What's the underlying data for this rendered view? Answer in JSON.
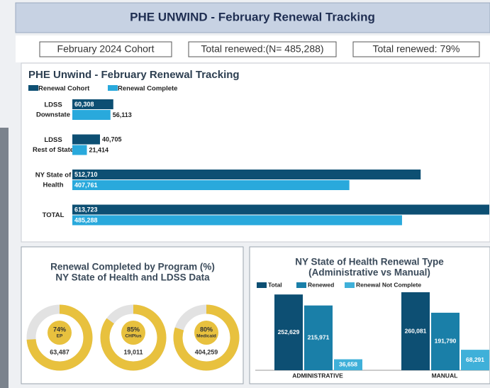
{
  "header": {
    "title": "PHE UNWIND - February Renewal Tracking"
  },
  "stats": [
    "February 2024 Cohort",
    "Total renewed:(N= 485,288)",
    "Total renewed: 79%"
  ],
  "chart_data": [
    {
      "type": "hbar",
      "title": "PHE Unwind - February Renewal Tracking",
      "categories": [
        [
          "LDSS",
          "Downstate"
        ],
        [
          "LDSS",
          "Rest of State"
        ],
        [
          "NY State of",
          "Health"
        ],
        [
          "TOTAL"
        ]
      ],
      "series": [
        {
          "name": "Renewal Cohort",
          "color": "#0d4f73",
          "values": [
            60308,
            40705,
            512710,
            613723
          ],
          "value_labels": [
            "60,308",
            "40,705",
            "512,710",
            "613,723"
          ]
        },
        {
          "name": "Renewal Complete",
          "color": "#29a9dc",
          "values": [
            56113,
            21414,
            407761,
            485288
          ],
          "value_labels": [
            "56,113",
            "21,414",
            "407,761",
            "485,288"
          ]
        }
      ]
    },
    {
      "type": "donut",
      "title": "Renewal Completed by Program (%)",
      "subtitle": "NY State of Health and LDSS Data",
      "categories": [
        "EP",
        "CHPlus",
        "Medicaid"
      ],
      "values": [
        74,
        85,
        80
      ],
      "value_labels": [
        "74%",
        "85%",
        "80%"
      ],
      "counts": [
        63487,
        19011,
        404259
      ],
      "count_labels": [
        "63,487",
        "19,011",
        "404,259"
      ],
      "color": "#e8c13e",
      "rest_color": "#e2e2e2"
    },
    {
      "type": "vbar",
      "title": "NY State of Health Renewal Type",
      "subtitle": "(Administrative vs Manual)",
      "categories": [
        "ADMINISTRATIVE",
        "MANUAL"
      ],
      "series": [
        {
          "name": "Total",
          "color": "#0d4f73",
          "values": [
            252629,
            260081
          ],
          "value_labels": [
            "252,629",
            "260,081"
          ]
        },
        {
          "name": "Renewed",
          "color": "#1a7fa8",
          "values": [
            215971,
            191790
          ],
          "value_labels": [
            "215,971",
            "191,790"
          ]
        },
        {
          "name": "Renewal Not Complete",
          "color": "#3fb0d9",
          "values": [
            36658,
            68291
          ],
          "value_labels": [
            "36,658",
            "68,291"
          ]
        }
      ]
    }
  ]
}
